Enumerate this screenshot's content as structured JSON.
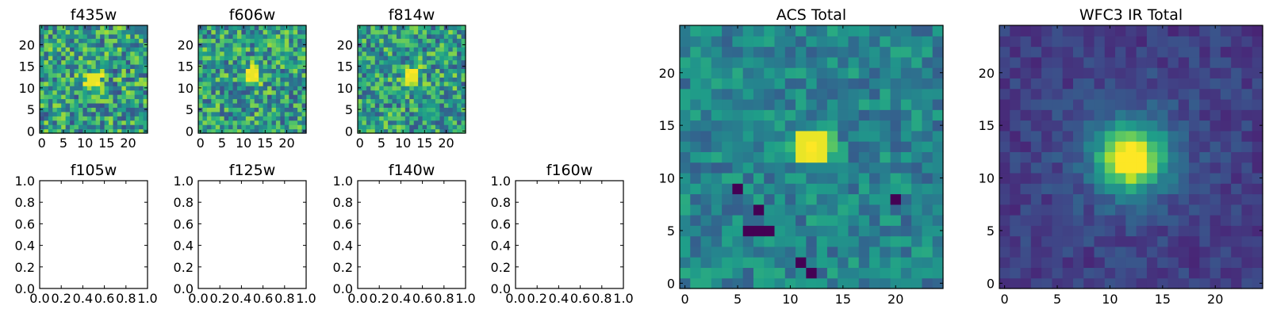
{
  "chart_data": [
    {
      "type": "heatmap",
      "title": "f435w",
      "grid_size": [
        25,
        25
      ],
      "xlim": [
        0,
        24
      ],
      "ylim": [
        0,
        24
      ],
      "x_ticks": [
        0,
        5,
        10,
        15,
        20
      ],
      "y_ticks": [
        0,
        5,
        10,
        15,
        20
      ],
      "x_tick_labels": [
        "0",
        "5",
        "10",
        "15",
        "20"
      ],
      "y_tick_labels": [
        "0",
        "5",
        "10",
        "15",
        "20"
      ],
      "colormap": "viridis",
      "source_center": [
        12,
        12
      ],
      "noise_level": 0.32,
      "peak": 0.95,
      "sigma": 1.6
    },
    {
      "type": "heatmap",
      "title": "f606w",
      "grid_size": [
        25,
        25
      ],
      "xlim": [
        0,
        24
      ],
      "ylim": [
        0,
        24
      ],
      "x_ticks": [
        0,
        5,
        10,
        15,
        20
      ],
      "y_ticks": [
        0,
        5,
        10,
        15,
        20
      ],
      "x_tick_labels": [
        "0",
        "5",
        "10",
        "15",
        "20"
      ],
      "y_tick_labels": [
        "0",
        "5",
        "10",
        "15",
        "20"
      ],
      "colormap": "viridis",
      "source_center": [
        12,
        13
      ],
      "noise_level": 0.3,
      "peak": 1.0,
      "sigma": 1.4
    },
    {
      "type": "heatmap",
      "title": "f814w",
      "grid_size": [
        25,
        25
      ],
      "xlim": [
        0,
        24
      ],
      "ylim": [
        0,
        24
      ],
      "x_ticks": [
        0,
        5,
        10,
        15,
        20
      ],
      "y_ticks": [
        0,
        5,
        10,
        15,
        20
      ],
      "x_tick_labels": [
        "0",
        "5",
        "10",
        "15",
        "20"
      ],
      "y_tick_labels": [
        "0",
        "5",
        "10",
        "15",
        "20"
      ],
      "colormap": "viridis",
      "source_center": [
        12,
        13
      ],
      "noise_level": 0.3,
      "peak": 1.0,
      "sigma": 1.4
    },
    {
      "type": "heatmap",
      "title": "f105w",
      "empty": true,
      "xlim": [
        0,
        1
      ],
      "ylim": [
        0,
        1
      ],
      "x_tick_labels": [
        "0.0",
        "0.2",
        "0.4",
        "0.6",
        "0.8",
        "1.0"
      ],
      "y_tick_labels": [
        "0.0",
        "0.2",
        "0.4",
        "0.6",
        "0.8",
        "1.0"
      ]
    },
    {
      "type": "heatmap",
      "title": "f125w",
      "empty": true,
      "xlim": [
        0,
        1
      ],
      "ylim": [
        0,
        1
      ],
      "x_tick_labels": [
        "0.0",
        "0.2",
        "0.4",
        "0.6",
        "0.8",
        "1.0"
      ],
      "y_tick_labels": [
        "0.0",
        "0.2",
        "0.4",
        "0.6",
        "0.8",
        "1.0"
      ]
    },
    {
      "type": "heatmap",
      "title": "f140w",
      "empty": true,
      "xlim": [
        0,
        1
      ],
      "ylim": [
        0,
        1
      ],
      "x_tick_labels": [
        "0.0",
        "0.2",
        "0.4",
        "0.6",
        "0.8",
        "1.0"
      ],
      "y_tick_labels": [
        "0.0",
        "0.2",
        "0.4",
        "0.6",
        "0.8",
        "1.0"
      ]
    },
    {
      "type": "heatmap",
      "title": "f160w",
      "empty": true,
      "xlim": [
        0,
        1
      ],
      "ylim": [
        0,
        1
      ],
      "x_tick_labels": [
        "0.0",
        "0.2",
        "0.4",
        "0.6",
        "0.8",
        "1.0"
      ],
      "y_tick_labels": [
        "0.0",
        "0.2",
        "0.4",
        "0.6",
        "0.8",
        "1.0"
      ]
    },
    {
      "type": "heatmap",
      "title": "ACS Total",
      "grid_size": [
        25,
        25
      ],
      "xlim": [
        0,
        24
      ],
      "ylim": [
        0,
        24
      ],
      "x_ticks": [
        0,
        5,
        10,
        15,
        20
      ],
      "y_ticks": [
        0,
        5,
        10,
        15,
        20
      ],
      "x_tick_labels": [
        "0",
        "5",
        "10",
        "15",
        "20"
      ],
      "y_tick_labels": [
        "0",
        "5",
        "10",
        "15",
        "20"
      ],
      "colormap": "viridis",
      "source_center": [
        12,
        13
      ],
      "noise_level": 0.16,
      "base_level": 0.45,
      "peak": 1.0,
      "sigma": 1.3,
      "low_pixels": [
        [
          6,
          5
        ],
        [
          7,
          5
        ],
        [
          8,
          5
        ],
        [
          7,
          7
        ],
        [
          11,
          2
        ],
        [
          12,
          1
        ],
        [
          5,
          9
        ],
        [
          20,
          8
        ]
      ]
    },
    {
      "type": "heatmap",
      "title": "WFC3 IR Total",
      "grid_size": [
        25,
        25
      ],
      "xlim": [
        0,
        24
      ],
      "ylim": [
        0,
        24
      ],
      "x_ticks": [
        0,
        5,
        10,
        15,
        20
      ],
      "y_ticks": [
        0,
        5,
        10,
        15,
        20
      ],
      "x_tick_labels": [
        "0",
        "5",
        "10",
        "15",
        "20"
      ],
      "y_tick_labels": [
        "0",
        "5",
        "10",
        "15",
        "20"
      ],
      "colormap": "viridis",
      "source_center": [
        12,
        12
      ],
      "noise_level": 0.08,
      "base_level": 0.18,
      "peak": 1.0,
      "sigma": 1.9,
      "halo_level": 0.22,
      "halo_sigma": 4.0
    }
  ]
}
